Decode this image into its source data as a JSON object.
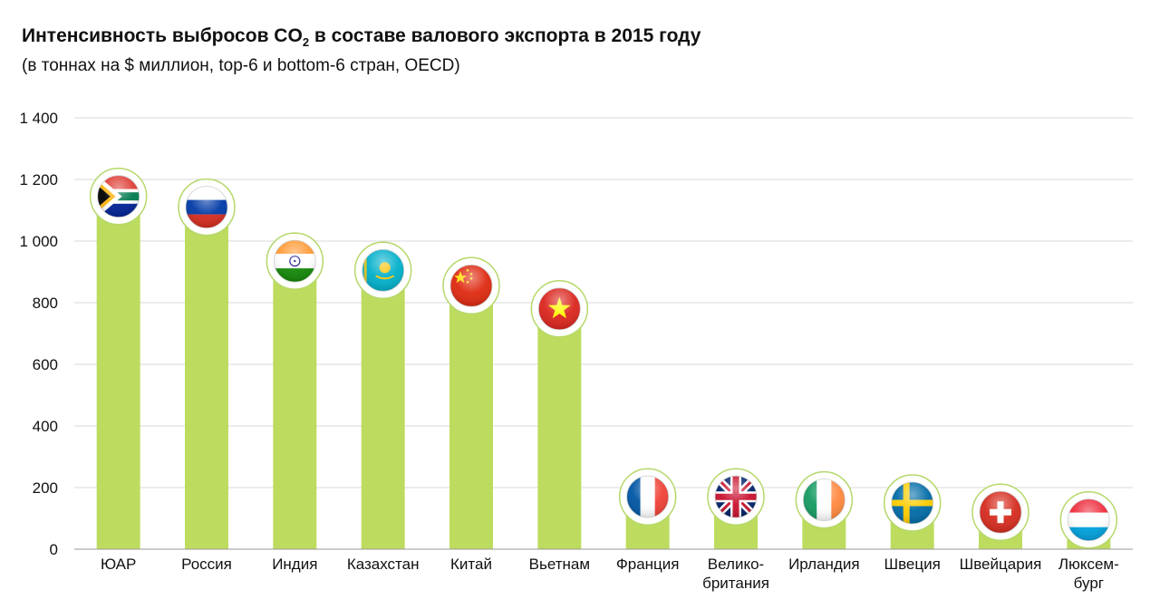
{
  "header": {
    "title_main": "Интенсивность выбросов CO",
    "title_sub": "2",
    "title_rest": " в составе валового экспорта в 2015 году",
    "subtitle": "(в тоннах на $ миллион, top-6 и bottom-6 стран, OECD)"
  },
  "chart_data": {
    "type": "bar",
    "title": "Интенсивность выбросов CO2 в составе валового экспорта в 2015 году",
    "subtitle": "(в тоннах на $ миллион, top-6 и bottom-6 стран, OECD)",
    "categories": [
      {
        "lines": [
          "ЮАР"
        ],
        "flag": "south-africa-flag-icon"
      },
      {
        "lines": [
          "Россия"
        ],
        "flag": "russia-flag-icon"
      },
      {
        "lines": [
          "Индия"
        ],
        "flag": "india-flag-icon"
      },
      {
        "lines": [
          "Казахстан"
        ],
        "flag": "kazakhstan-flag-icon"
      },
      {
        "lines": [
          "Китай"
        ],
        "flag": "china-flag-icon"
      },
      {
        "lines": [
          "Вьетнам"
        ],
        "flag": "vietnam-flag-icon"
      },
      {
        "lines": [
          "Франция"
        ],
        "flag": "france-flag-icon"
      },
      {
        "lines": [
          "Велико-",
          "британия"
        ],
        "flag": "uk-flag-icon"
      },
      {
        "lines": [
          "Ирландия"
        ],
        "flag": "ireland-flag-icon"
      },
      {
        "lines": [
          "Швеция"
        ],
        "flag": "sweden-flag-icon"
      },
      {
        "lines": [
          "Швейцария"
        ],
        "flag": "switzerland-flag-icon"
      },
      {
        "lines": [
          "Люксем-",
          "бург"
        ],
        "flag": "luxembourg-flag-icon"
      }
    ],
    "values": [
      1145,
      1110,
      935,
      905,
      855,
      780,
      170,
      170,
      160,
      150,
      120,
      95
    ],
    "ylim": [
      0,
      1400
    ],
    "yticks": [
      0,
      200,
      400,
      600,
      800,
      1000,
      1200,
      1400
    ],
    "ytick_labels": [
      "0",
      "200",
      "400",
      "600",
      "800",
      "1 000",
      "1 200",
      "1 400"
    ],
    "grid": true,
    "bar_color": "#bddc5f",
    "grid_color": "#d9d9d9",
    "flag_ring_color": "#b5d86a"
  }
}
